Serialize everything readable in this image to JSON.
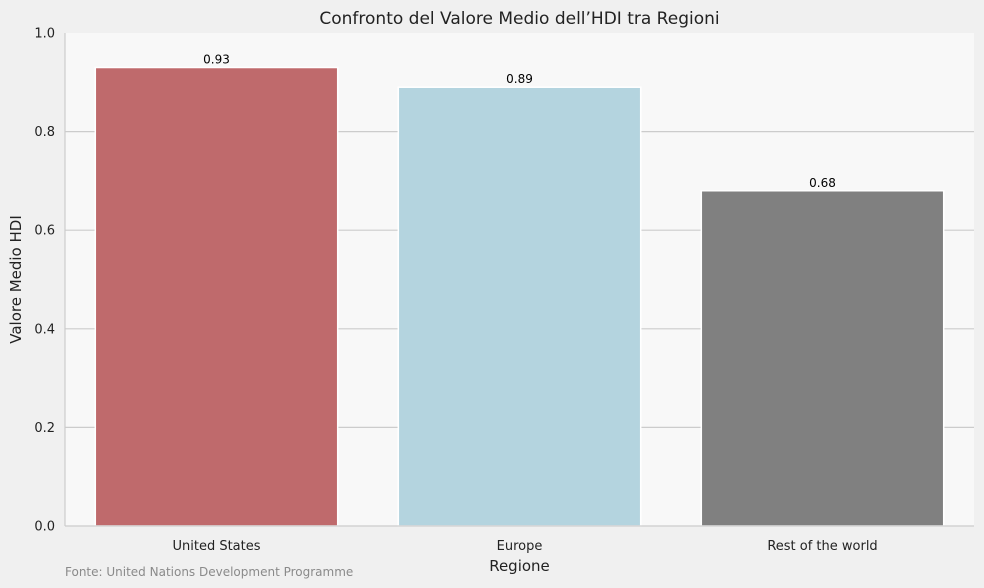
{
  "chart_data": {
    "type": "bar",
    "title": "Confronto del Valore Medio dell’HDI tra Regioni",
    "xlabel": "Regione",
    "ylabel": "Valore Medio HDI",
    "categories": [
      "United States",
      "Europe",
      "Rest of the world"
    ],
    "values": [
      0.93,
      0.89,
      0.68
    ],
    "value_labels": [
      "0.93",
      "0.89",
      "0.68"
    ],
    "colors": [
      "#bf6a6c",
      "#b4d4df",
      "#808080"
    ],
    "ylim": [
      0,
      1.0
    ],
    "yticks": [
      "0.0",
      "0.2",
      "0.4",
      "0.6",
      "0.8",
      "1.0"
    ],
    "grid": "horizontal",
    "source": "Fonte: United Nations Development Programme"
  }
}
